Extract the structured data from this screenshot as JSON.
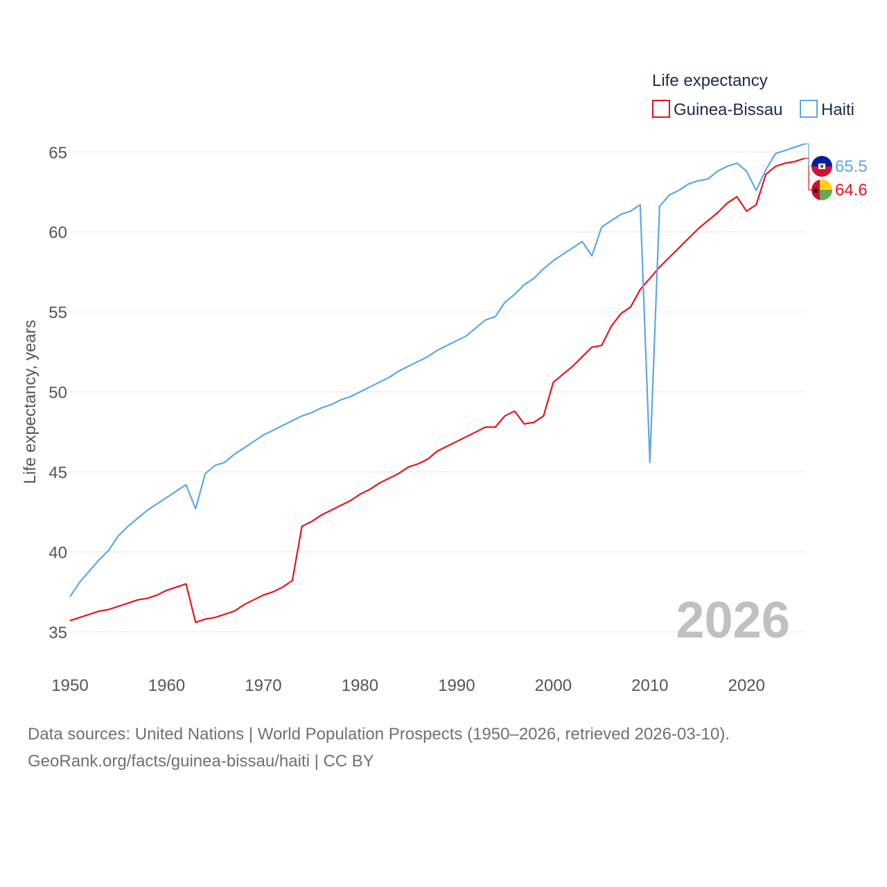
{
  "legend": {
    "title": "Life expectancy",
    "items": [
      {
        "label": "Guinea-Bissau",
        "color": "#e8121b"
      },
      {
        "label": "Haiti",
        "color": "#5da6e4"
      }
    ]
  },
  "year_label": "2026",
  "footer": {
    "line1": "Data sources: United Nations | World Population Prospects (1950–2026, retrieved 2026-03-10).",
    "line2": "GeoRank.org/facts/guinea-bissau/haiti | CC BY"
  },
  "chart_data": {
    "type": "line",
    "title": "Life expectancy",
    "xlabel": "",
    "ylabel": "Life expectancy, years",
    "xlim": [
      1950,
      2026
    ],
    "ylim": [
      34,
      68
    ],
    "x_ticks": [
      1950,
      1960,
      1970,
      1980,
      1990,
      2000,
      2010,
      2020
    ],
    "y_ticks": [
      35,
      40,
      45,
      50,
      55,
      60,
      65
    ],
    "grid": true,
    "legend_position": "top-right",
    "x": [
      1950,
      1951,
      1952,
      1953,
      1954,
      1955,
      1956,
      1957,
      1958,
      1959,
      1960,
      1961,
      1962,
      1963,
      1964,
      1965,
      1966,
      1967,
      1968,
      1969,
      1970,
      1971,
      1972,
      1973,
      1974,
      1975,
      1976,
      1977,
      1978,
      1979,
      1980,
      1981,
      1982,
      1983,
      1984,
      1985,
      1986,
      1987,
      1988,
      1989,
      1990,
      1991,
      1992,
      1993,
      1994,
      1995,
      1996,
      1997,
      1998,
      1999,
      2000,
      2001,
      2002,
      2003,
      2004,
      2005,
      2006,
      2007,
      2008,
      2009,
      2010,
      2011,
      2012,
      2013,
      2014,
      2015,
      2016,
      2017,
      2018,
      2019,
      2020,
      2021,
      2022,
      2023,
      2024,
      2025,
      2026
    ],
    "series": [
      {
        "name": "Guinea-Bissau",
        "color": "#e8121b",
        "end_label": "64.6",
        "flag": "guinea-bissau",
        "values": [
          35.7,
          35.9,
          36.1,
          36.3,
          36.4,
          36.6,
          36.8,
          37.0,
          37.1,
          37.3,
          37.6,
          37.8,
          38.0,
          35.6,
          35.8,
          35.9,
          36.1,
          36.3,
          36.7,
          37.0,
          37.3,
          37.5,
          37.8,
          38.2,
          41.6,
          41.9,
          42.3,
          42.6,
          42.9,
          43.2,
          43.6,
          43.9,
          44.3,
          44.6,
          44.9,
          45.3,
          45.5,
          45.8,
          46.3,
          46.6,
          46.9,
          47.2,
          47.5,
          47.8,
          47.8,
          48.5,
          48.8,
          48.0,
          48.1,
          48.5,
          50.6,
          51.1,
          51.6,
          52.2,
          52.8,
          52.9,
          54.1,
          54.9,
          55.3,
          56.4,
          57.1,
          57.8,
          58.4,
          59.0,
          59.6,
          60.2,
          60.7,
          61.2,
          61.8,
          62.2,
          61.3,
          61.7,
          63.6,
          64.1,
          64.3,
          64.4,
          64.6
        ]
      },
      {
        "name": "Haiti",
        "color": "#5da6e4",
        "end_label": "65.5",
        "flag": "haiti",
        "values": [
          37.2,
          38.1,
          38.8,
          39.5,
          40.1,
          41.0,
          41.6,
          42.1,
          42.6,
          43.0,
          43.4,
          43.8,
          44.2,
          42.7,
          44.9,
          45.4,
          45.6,
          46.1,
          46.5,
          46.9,
          47.3,
          47.6,
          47.9,
          48.2,
          48.5,
          48.7,
          49.0,
          49.2,
          49.5,
          49.7,
          50.0,
          50.3,
          50.6,
          50.9,
          51.3,
          51.6,
          51.9,
          52.2,
          52.6,
          52.9,
          53.2,
          53.5,
          54.0,
          54.5,
          54.7,
          55.6,
          56.1,
          56.7,
          57.1,
          57.7,
          58.2,
          58.6,
          59.0,
          59.4,
          58.5,
          60.3,
          60.7,
          61.1,
          61.3,
          61.7,
          45.6,
          61.6,
          62.3,
          62.6,
          63.0,
          63.2,
          63.3,
          63.8,
          64.1,
          64.3,
          63.8,
          62.6,
          63.9,
          64.9,
          65.1,
          65.3,
          65.5
        ]
      }
    ]
  }
}
